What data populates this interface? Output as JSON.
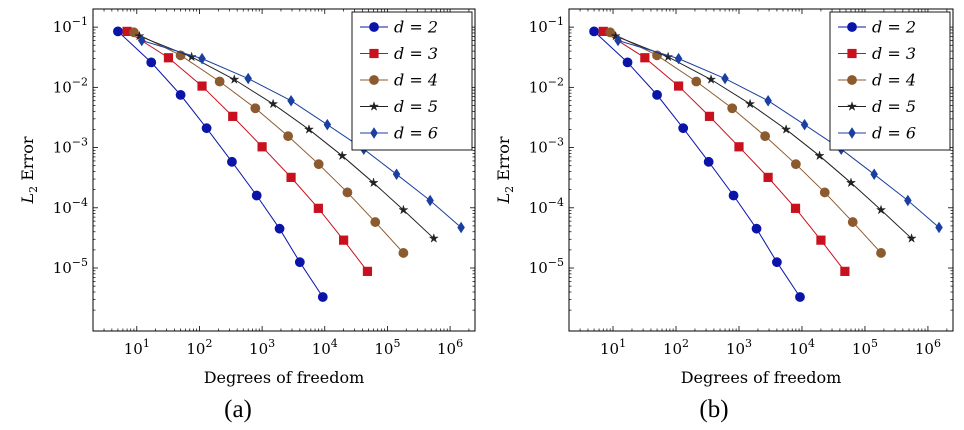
{
  "chart_data": [
    {
      "type": "line",
      "caption": "(a)",
      "xlabel": "Degrees of freedom",
      "ylabel_main": "L",
      "ylabel_sub": "2",
      "ylabel_rest": " Error",
      "xscale": "log",
      "yscale": "log",
      "xlim": [
        2,
        2500000
      ],
      "ylim": [
        9e-07,
        0.2
      ],
      "grid": false,
      "legend_position": "top-right",
      "xticks": [
        10,
        100,
        1000,
        10000,
        100000,
        1000000
      ],
      "xtick_exponents": [
        "1",
        "2",
        "3",
        "4",
        "5",
        "6"
      ],
      "yticks": [
        1e-05,
        0.0001,
        0.001,
        0.01,
        0.1
      ],
      "ytick_exponents": [
        "−5",
        "−4",
        "−3",
        "−2",
        "−1"
      ],
      "tick_base": "10",
      "series": [
        {
          "name": "d = 2",
          "marker": "circle",
          "color": "#0b14a8",
          "x": [
            5,
            17,
            50,
            130,
            330,
            820,
            1900,
            4000,
            9300
          ],
          "y": [
            0.085,
            0.026,
            0.0075,
            0.0021,
            0.00058,
            0.00016,
            4.5e-05,
            1.25e-05,
            3.3e-06
          ]
        },
        {
          "name": "d = 3",
          "marker": "square",
          "color": "#c8101e",
          "x": [
            7,
            32,
            110,
            340,
            1000,
            2900,
            7900,
            20000,
            48000
          ],
          "y": [
            0.085,
            0.031,
            0.0105,
            0.0033,
            0.00103,
            0.00032,
            9.8e-05,
            2.9e-05,
            8.8e-06
          ]
        },
        {
          "name": "d = 4",
          "marker": "circle",
          "color": "#8c5a2f",
          "x": [
            9,
            50,
            210,
            780,
            2600,
            8000,
            23000,
            64000,
            180000
          ],
          "y": [
            0.082,
            0.034,
            0.0125,
            0.0045,
            0.00155,
            0.00053,
            0.00018,
            5.8e-05,
            1.78e-05
          ]
        },
        {
          "name": "d = 5",
          "marker": "star",
          "color": "#222222",
          "x": [
            11,
            75,
            360,
            1500,
            5600,
            19000,
            60000,
            180000,
            550000
          ],
          "y": [
            0.071,
            0.032,
            0.0135,
            0.0053,
            0.002,
            0.00073,
            0.00026,
            9.2e-05,
            3.1e-05
          ]
        },
        {
          "name": "d = 6",
          "marker": "diamond",
          "color": "#1a3fa0",
          "x": [
            12,
            110,
            600,
            2900,
            11000,
            42000,
            140000,
            480000,
            1500000
          ],
          "y": [
            0.06,
            0.03,
            0.014,
            0.006,
            0.0024,
            0.00094,
            0.00036,
            0.000132,
            4.7e-05
          ]
        }
      ]
    },
    {
      "type": "line",
      "caption": "(b)",
      "xlabel": "Degrees of freedom",
      "ylabel_main": "L",
      "ylabel_sub": "2",
      "ylabel_rest": " Error",
      "xscale": "log",
      "yscale": "log",
      "xlim": [
        2,
        2500000
      ],
      "ylim": [
        9e-07,
        0.2
      ],
      "grid": false,
      "legend_position": "top-right",
      "xticks": [
        10,
        100,
        1000,
        10000,
        100000,
        1000000
      ],
      "xtick_exponents": [
        "1",
        "2",
        "3",
        "4",
        "5",
        "6"
      ],
      "yticks": [
        1e-05,
        0.0001,
        0.001,
        0.01,
        0.1
      ],
      "ytick_exponents": [
        "−5",
        "−4",
        "−3",
        "−2",
        "−1"
      ],
      "tick_base": "10",
      "series": [
        {
          "name": "d = 2",
          "marker": "circle",
          "color": "#0b14a8",
          "x": [
            5,
            17,
            50,
            130,
            330,
            820,
            1900,
            4000,
            9300
          ],
          "y": [
            0.085,
            0.026,
            0.0075,
            0.0021,
            0.00058,
            0.00016,
            4.5e-05,
            1.25e-05,
            3.3e-06
          ]
        },
        {
          "name": "d = 3",
          "marker": "square",
          "color": "#c8101e",
          "x": [
            7,
            32,
            110,
            340,
            1000,
            2900,
            7900,
            20000,
            48000
          ],
          "y": [
            0.085,
            0.031,
            0.0105,
            0.0033,
            0.00103,
            0.00032,
            9.8e-05,
            2.9e-05,
            8.8e-06
          ]
        },
        {
          "name": "d = 4",
          "marker": "circle",
          "color": "#8c5a2f",
          "x": [
            9,
            50,
            210,
            780,
            2600,
            8000,
            23000,
            64000,
            180000
          ],
          "y": [
            0.082,
            0.034,
            0.0125,
            0.0045,
            0.00155,
            0.00053,
            0.00018,
            5.8e-05,
            1.78e-05
          ]
        },
        {
          "name": "d = 5",
          "marker": "star",
          "color": "#222222",
          "x": [
            11,
            75,
            360,
            1500,
            5600,
            19000,
            60000,
            180000,
            550000
          ],
          "y": [
            0.071,
            0.032,
            0.0135,
            0.0053,
            0.002,
            0.00073,
            0.00026,
            9.2e-05,
            3.1e-05
          ]
        },
        {
          "name": "d = 6",
          "marker": "diamond",
          "color": "#1a3fa0",
          "x": [
            12,
            110,
            600,
            2900,
            11000,
            42000,
            140000,
            480000,
            1500000
          ],
          "y": [
            0.06,
            0.03,
            0.014,
            0.006,
            0.0024,
            0.00094,
            0.00036,
            0.000132,
            4.7e-05
          ]
        }
      ]
    }
  ]
}
